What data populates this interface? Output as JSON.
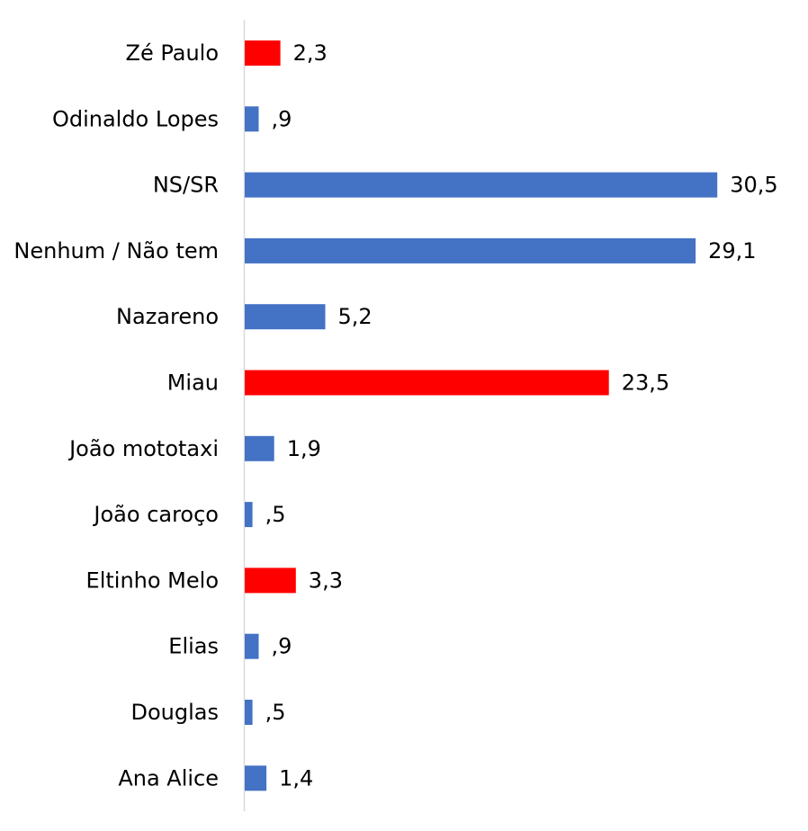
{
  "chart_data": {
    "type": "bar",
    "orientation": "horizontal",
    "title": "",
    "xlabel": "",
    "ylabel": "",
    "xlim": [
      0,
      33
    ],
    "grid": false,
    "legend": "none",
    "colors": {
      "default": "#4472C4",
      "highlight": "#FF0000",
      "axis": "#D9D9D9"
    },
    "categories": [
      "Zé Paulo",
      "Odinaldo Lopes",
      "NS/SR",
      "Nenhum / Não tem",
      "Nazareno",
      "Miau",
      "João mototaxi",
      "João caroço",
      "Eltinho Melo",
      "Elias",
      "Douglas",
      "Ana Alice"
    ],
    "values": [
      2.3,
      0.9,
      30.5,
      29.1,
      5.2,
      23.5,
      1.9,
      0.5,
      3.3,
      0.9,
      0.5,
      1.4
    ],
    "value_labels": [
      "2,3",
      ",9",
      "30,5",
      "29,1",
      "5,2",
      "23,5",
      "1,9",
      ",5",
      "3,3",
      ",9",
      ",5",
      "1,4"
    ],
    "highlighted": [
      true,
      false,
      false,
      false,
      false,
      true,
      false,
      false,
      true,
      false,
      false,
      false
    ]
  }
}
